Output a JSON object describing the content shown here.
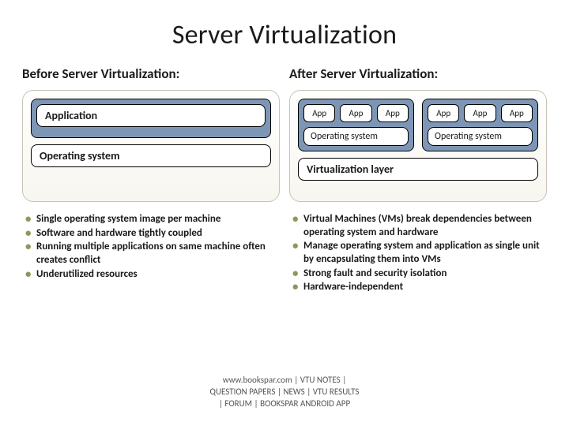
{
  "title": "Server Virtualization",
  "left": {
    "heading": "Before Server Virtualization:",
    "app_label": "Application",
    "os_label": "Operating system",
    "bullets": [
      "Single operating system image per machine",
      "Software and hardware tightly coupled",
      "Running multiple applications on same machine often creates conflict",
      "Underutilized resources"
    ]
  },
  "right": {
    "heading": "After Server Virtualization:",
    "app_label": "App",
    "os_label": "Operating system",
    "virt_label": "Virtualization layer",
    "bullets": [
      "Virtual Machines (VMs) break dependencies between operating system and hardware",
      "Manage operating system and application as single unit by encapsulating them into VMs",
      "Strong fault and security isolation",
      "Hardware-independent"
    ]
  },
  "footer": {
    "l1": "www.bookspar.com | VTU NOTES |",
    "l2": "QUESTION PAPERS | NEWS | VTU RESULTS",
    "l3": "| FORUM | BOOKSPAR ANDROID APP"
  },
  "colors": {
    "blue": "#7e96b6",
    "panel_border": "#c7c3b6",
    "bullet": "#8a9a5b"
  }
}
